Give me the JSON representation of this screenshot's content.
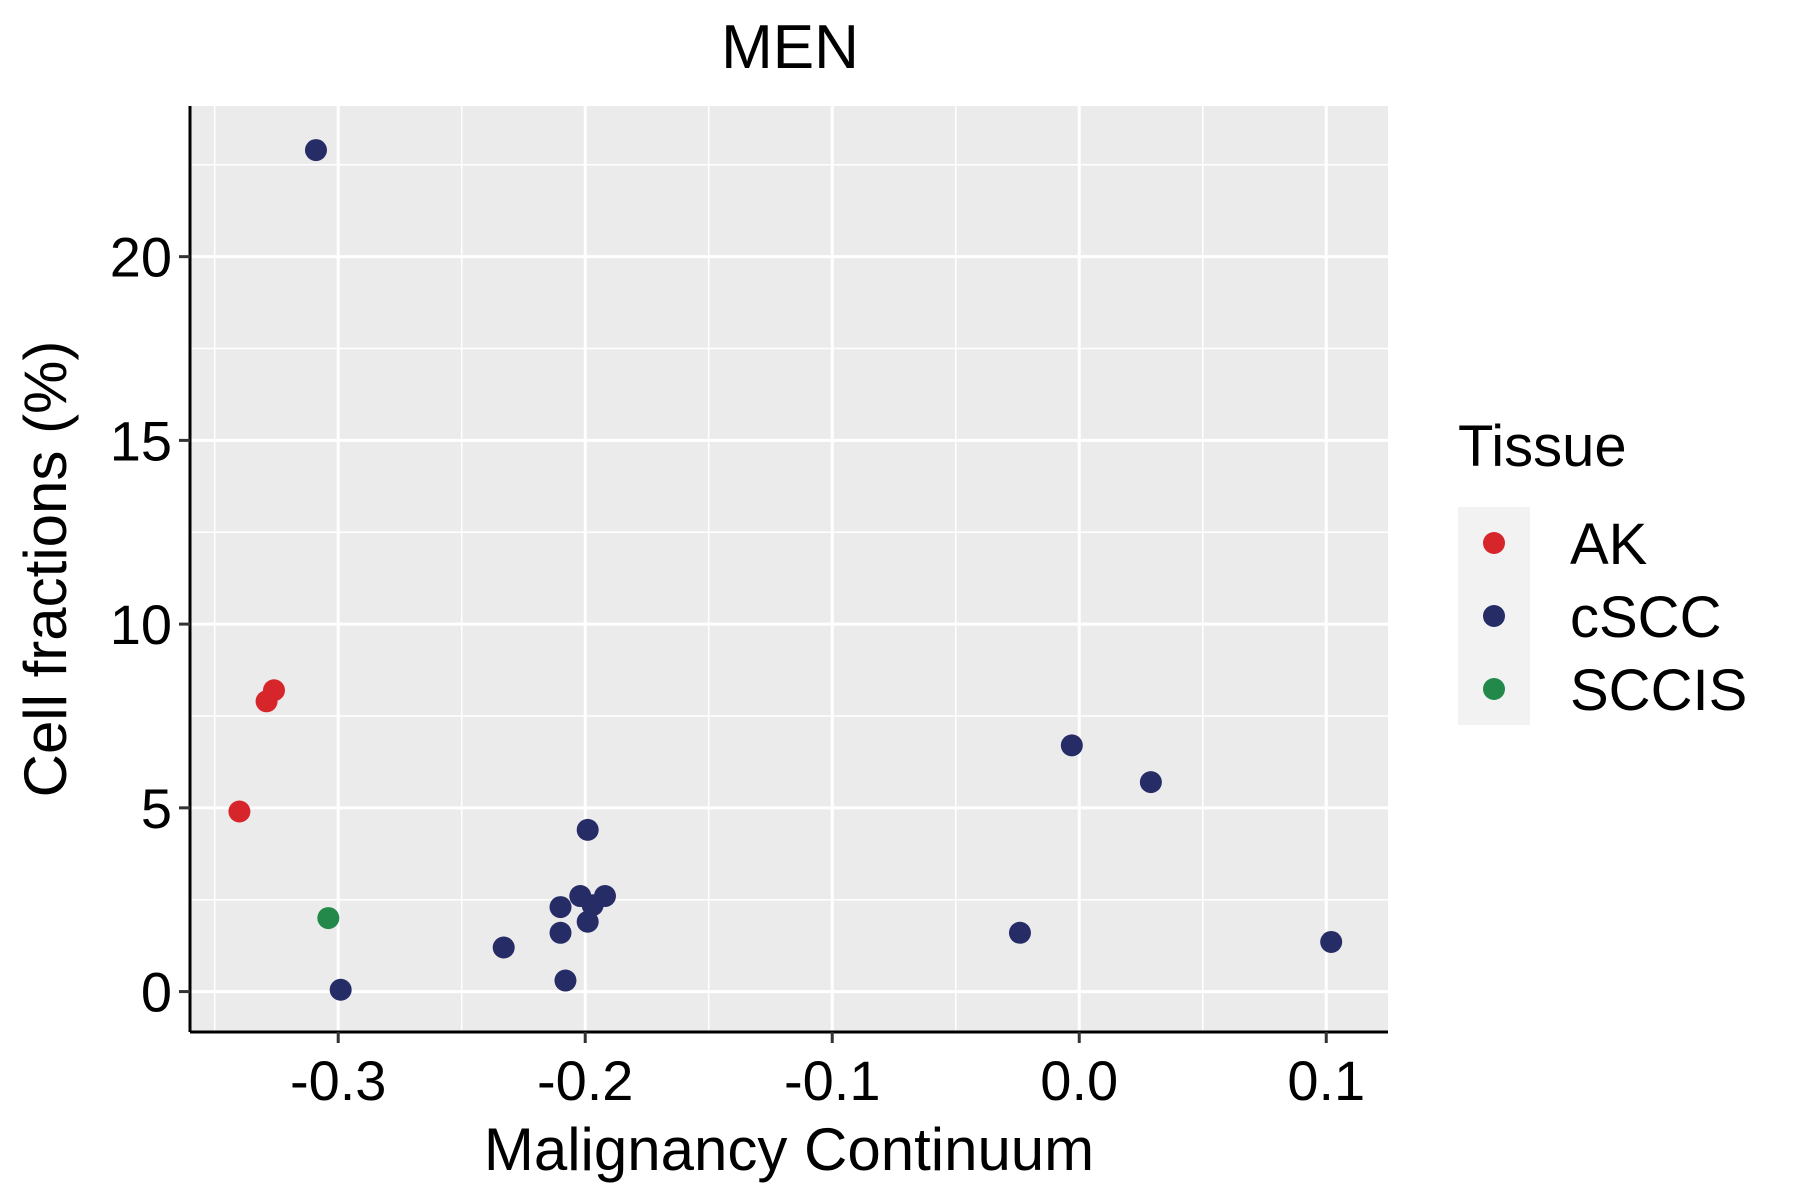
{
  "chart_data": {
    "type": "scatter",
    "title": "MEN",
    "xlabel": "Malignancy Continuum",
    "ylabel": "Cell fractions (%)",
    "xlim": [
      -0.36,
      0.125
    ],
    "ylim": [
      -1.1,
      24.1
    ],
    "x_ticks": [
      -0.3,
      -0.2,
      -0.1,
      0.0,
      0.1
    ],
    "x_tick_labels": [
      "-0.3",
      "-0.2",
      "-0.1",
      "0.0",
      "0.1"
    ],
    "y_ticks": [
      0,
      5,
      10,
      15,
      20
    ],
    "y_tick_labels": [
      "0",
      "5",
      "10",
      "15",
      "20"
    ],
    "grid": true,
    "legend": {
      "title": "Tissue",
      "position": "right",
      "entries": [
        {
          "label": "AK",
          "color": "#d7262b"
        },
        {
          "label": "cSCC",
          "color": "#262c66"
        },
        {
          "label": "SCCIS",
          "color": "#22894a"
        }
      ]
    },
    "series": [
      {
        "name": "AK",
        "color": "#d7262b",
        "points": [
          {
            "x": -0.34,
            "y": 4.9
          },
          {
            "x": -0.329,
            "y": 7.9
          },
          {
            "x": -0.326,
            "y": 8.2
          }
        ]
      },
      {
        "name": "cSCC",
        "color": "#262c66",
        "points": [
          {
            "x": -0.309,
            "y": 22.9
          },
          {
            "x": -0.299,
            "y": 0.05
          },
          {
            "x": -0.233,
            "y": 1.2
          },
          {
            "x": -0.21,
            "y": 2.3
          },
          {
            "x": -0.21,
            "y": 1.6
          },
          {
            "x": -0.208,
            "y": 0.3
          },
          {
            "x": -0.202,
            "y": 2.6
          },
          {
            "x": -0.199,
            "y": 4.4
          },
          {
            "x": -0.199,
            "y": 1.9
          },
          {
            "x": -0.197,
            "y": 2.35
          },
          {
            "x": -0.192,
            "y": 2.6
          },
          {
            "x": -0.024,
            "y": 1.6
          },
          {
            "x": -0.003,
            "y": 6.7
          },
          {
            "x": 0.029,
            "y": 5.7
          },
          {
            "x": 0.102,
            "y": 1.35
          }
        ]
      },
      {
        "name": "SCCIS",
        "color": "#22894a",
        "points": [
          {
            "x": -0.304,
            "y": 2.0
          }
        ]
      }
    ]
  }
}
